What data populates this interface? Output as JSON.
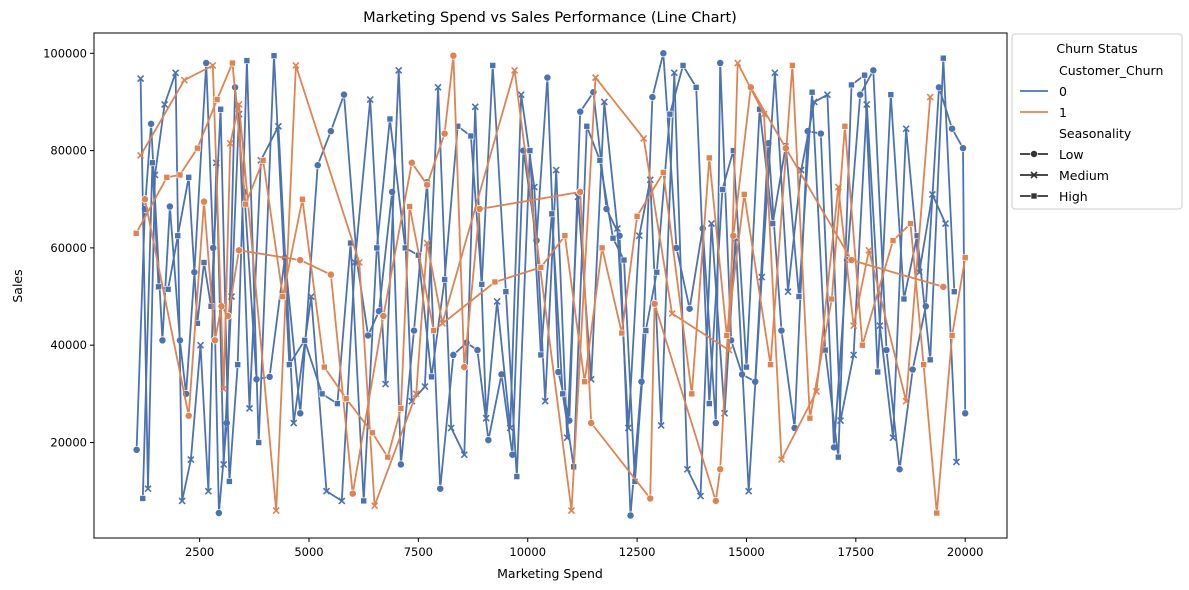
{
  "colors": {
    "churn_0": "#4c72b0",
    "churn_1": "#dd8452"
  },
  "chart_data": {
    "type": "line",
    "title": "Marketing Spend vs Sales Performance (Line Chart)",
    "xlabel": "Marketing Spend",
    "ylabel": "Sales",
    "xlim": [
      1000,
      20000
    ],
    "ylim": [
      5000,
      100000
    ],
    "x_ticks": [
      2500,
      5000,
      7500,
      10000,
      12500,
      15000,
      17500,
      20000
    ],
    "y_ticks": [
      20000,
      40000,
      60000,
      80000,
      100000
    ],
    "grid": false,
    "legend": {
      "placement": "outside-top-right",
      "title": "Churn Status",
      "hue_title": "Customer_Churn",
      "style_title": "Seasonality",
      "hue_entries": [
        {
          "label": "0",
          "color": "#4c72b0"
        },
        {
          "label": "1",
          "color": "#dd8452"
        }
      ],
      "style_entries": [
        {
          "label": "Low",
          "marker": "circle"
        },
        {
          "label": "Medium",
          "marker": "x"
        },
        {
          "label": "High",
          "marker": "square"
        }
      ]
    },
    "series": [
      {
        "churn": "0",
        "season": "Low",
        "color": "#4c72b0",
        "marker": "circle",
        "x": [
          1060,
          1250,
          1390,
          1650,
          1820,
          2050,
          2190,
          2380,
          2650,
          2810,
          2940,
          3120,
          3310,
          3520,
          3800,
          4100,
          4450,
          4800,
          5200,
          5500,
          5800,
          6100,
          6350,
          6600,
          6900,
          7100,
          7400,
          7700,
          8000,
          8300,
          8600,
          8850,
          9100,
          9400,
          9650,
          9900,
          10200,
          10450,
          10700,
          10950,
          11200,
          11500,
          11800,
          12100,
          12350,
          12600,
          12850,
          13100,
          13400,
          13700,
          14000,
          14300,
          14400,
          14650,
          14900,
          15200,
          15500,
          15800,
          16100,
          16400,
          16700,
          17000,
          17300,
          17600,
          17900,
          18200,
          18500,
          18800,
          19100,
          19400,
          19700,
          19950,
          20000
        ],
        "y": [
          18500,
          68000,
          85500,
          41000,
          68500,
          41000,
          30000,
          55000,
          98000,
          60000,
          5500,
          24000,
          93000,
          71500,
          33000,
          33500,
          58000,
          26000,
          77000,
          84000,
          91500,
          57000,
          42000,
          47000,
          71500,
          15500,
          43000,
          73500,
          10500,
          38000,
          40500,
          39000,
          20500,
          34000,
          17500,
          80000,
          61500,
          95000,
          34500,
          24500,
          88000,
          92000,
          68000,
          62500,
          5000,
          32500,
          91000,
          100000,
          60000,
          47500,
          64000,
          24000,
          98000,
          41000,
          34000,
          32500,
          81500,
          43000,
          23000,
          84000,
          83500,
          19000,
          57500,
          91500,
          96500,
          39000,
          14500,
          35000,
          48000,
          93000,
          84500,
          80500,
          26000
        ]
      },
      {
        "churn": "0",
        "season": "Medium",
        "color": "#4c72b0",
        "marker": "x",
        "x": [
          1150,
          1320,
          1480,
          1700,
          1950,
          2100,
          2300,
          2520,
          2700,
          2880,
          3050,
          3230,
          3400,
          3640,
          3900,
          4300,
          4650,
          5050,
          5400,
          5750,
          6050,
          6400,
          6750,
          7050,
          7350,
          7650,
          7950,
          8250,
          8550,
          8800,
          9050,
          9300,
          9600,
          9850,
          10150,
          10400,
          10650,
          10900,
          11150,
          11450,
          11750,
          12050,
          12300,
          12550,
          12800,
          13050,
          13350,
          13650,
          13950,
          14200,
          14500,
          14750,
          15050,
          15350,
          15650,
          15950,
          16250,
          16550,
          16850,
          17150,
          17450,
          17750,
          18050,
          18350,
          18650,
          18950,
          19250,
          19550,
          19800
        ],
        "y": [
          94800,
          10500,
          75000,
          89500,
          96000,
          8000,
          16500,
          40000,
          10000,
          77500,
          15500,
          50000,
          87500,
          27000,
          78000,
          85000,
          24000,
          50000,
          10000,
          8000,
          57000,
          90500,
          32000,
          96500,
          28500,
          31500,
          93000,
          23000,
          17500,
          89000,
          25000,
          49000,
          23000,
          91500,
          72500,
          28500,
          76000,
          21000,
          70500,
          33000,
          90000,
          64000,
          23000,
          62500,
          74000,
          23500,
          96000,
          14500,
          9000,
          65000,
          26000,
          62000,
          10000,
          54000,
          96000,
          51000,
          76000,
          90000,
          91500,
          24500,
          38000,
          89500,
          44000,
          21000,
          84500,
          55000,
          71000,
          65000,
          16000
        ]
      },
      {
        "churn": "0",
        "season": "High",
        "color": "#4c72b0",
        "marker": "square",
        "x": [
          1200,
          1420,
          1560,
          1780,
          2000,
          2250,
          2450,
          2600,
          2760,
          2980,
          3180,
          3370,
          3580,
          3850,
          4200,
          4550,
          4900,
          5300,
          5650,
          5950,
          6250,
          6550,
          6850,
          7200,
          7500,
          7800,
          8100,
          8400,
          8700,
          8950,
          9200,
          9500,
          9750,
          10050,
          10300,
          10550,
          10800,
          11050,
          11350,
          11650,
          11950,
          12200,
          12450,
          12700,
          12950,
          13250,
          13550,
          13850,
          14150,
          14450,
          14700,
          15000,
          15300,
          15600,
          15900,
          16200,
          16500,
          16800,
          17100,
          17400,
          17700,
          18000,
          18300,
          18600,
          18900,
          19200,
          19500,
          19750
        ],
        "y": [
          8500,
          77500,
          52000,
          51500,
          62500,
          74500,
          44500,
          57000,
          48000,
          88500,
          12000,
          36000,
          98500,
          20000,
          99500,
          36000,
          41000,
          30000,
          28000,
          61000,
          8000,
          60000,
          86500,
          60000,
          58500,
          33500,
          53500,
          85000,
          83000,
          52500,
          97500,
          51000,
          13000,
          80000,
          38000,
          67000,
          30000,
          15000,
          85000,
          78000,
          62000,
          57500,
          12000,
          43000,
          55000,
          87500,
          97500,
          93000,
          28000,
          72000,
          80000,
          35500,
          88500,
          65000,
          81000,
          50000,
          92000,
          39000,
          17000,
          93500,
          95500,
          34500,
          91500,
          49500,
          62500,
          37000,
          99000,
          51000
        ]
      },
      {
        "churn": "1",
        "season": "Low",
        "color": "#dd8452",
        "marker": "circle",
        "x": [
          1250,
          2250,
          2600,
          2850,
          3000,
          3150,
          3400,
          4800,
          5500,
          6000,
          6700,
          7350,
          7700,
          8100,
          8300,
          8550,
          8900,
          11200,
          11450,
          12800,
          12900,
          14300,
          14400,
          14700,
          15100,
          15900,
          17400,
          19500
        ],
        "y": [
          70000,
          25500,
          69500,
          41000,
          48000,
          46000,
          59500,
          57500,
          54500,
          9500,
          46000,
          77500,
          73000,
          83500,
          99500,
          35500,
          68000,
          71500,
          24000,
          8500,
          48500,
          8000,
          14500,
          62500,
          93000,
          80500,
          57500,
          52000
        ]
      },
      {
        "churn": "1",
        "season": "Medium",
        "color": "#dd8452",
        "marker": "x",
        "x": [
          1150,
          2150,
          2800,
          3050,
          3200,
          3400,
          4250,
          4700,
          6150,
          6500,
          7450,
          7700,
          8050,
          9700,
          11000,
          11550,
          12650,
          13300,
          14600,
          14800,
          15400,
          15800,
          16600,
          17100,
          17450,
          17800,
          18650,
          19200
        ],
        "y": [
          79000,
          94500,
          97500,
          31000,
          81500,
          89500,
          6000,
          97500,
          57000,
          7000,
          30000,
          61000,
          44500,
          96500,
          6000,
          95000,
          82500,
          46500,
          39000,
          98000,
          87500,
          16500,
          30500,
          72500,
          44000,
          59500,
          28500,
          91000
        ]
      },
      {
        "churn": "1",
        "season": "High",
        "color": "#dd8452",
        "marker": "square",
        "x": [
          1050,
          1750,
          2050,
          2450,
          2900,
          3250,
          3550,
          3950,
          4400,
          4850,
          5350,
          5850,
          6450,
          6800,
          7100,
          7300,
          7850,
          9250,
          10300,
          10850,
          11300,
          11700,
          12150,
          12500,
          13100,
          13750,
          14150,
          14550,
          14950,
          15550,
          16050,
          16450,
          16950,
          17250,
          17650,
          18350,
          18750,
          19050,
          19350,
          19700,
          20000
        ],
        "y": [
          63000,
          74500,
          75000,
          80500,
          90500,
          98000,
          69000,
          78000,
          50000,
          70000,
          35500,
          29000,
          22000,
          17000,
          27000,
          68500,
          43000,
          53000,
          56000,
          62500,
          32500,
          60000,
          42500,
          66500,
          75500,
          30000,
          78500,
          42000,
          71000,
          36000,
          97500,
          25000,
          49500,
          85000,
          40000,
          61500,
          65000,
          36000,
          5500,
          42000,
          58000
        ]
      }
    ]
  }
}
